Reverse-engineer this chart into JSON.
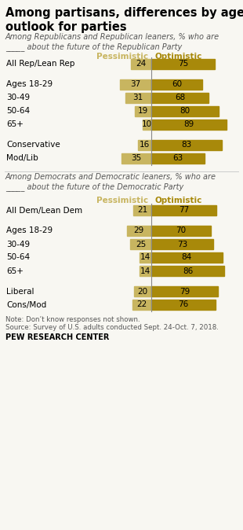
{
  "title": "Among partisans, differences by age in\noutlook for parties",
  "subtitle_rep": "Among Republicans and Republican leaners, % who are\n_____ about the future of the Republican Party",
  "subtitle_dem": "Among Democrats and Democratic leaners, % who are\n_____ about the future of the Democratic Party",
  "col_header_pessimistic": "Pessimistic",
  "col_header_optimistic": "Optimistic",
  "rep_labels": [
    "All Rep/Lean Rep",
    "Ages 18-29",
    "30-49",
    "50-64",
    "65+",
    "Conservative",
    "Mod/Lib"
  ],
  "rep_pessimistic": [
    24,
    37,
    31,
    19,
    10,
    16,
    35
  ],
  "rep_optimistic": [
    75,
    60,
    68,
    80,
    89,
    83,
    63
  ],
  "dem_labels": [
    "All Dem/Lean Dem",
    "Ages 18-29",
    "30-49",
    "50-64",
    "65+",
    "Liberal",
    "Cons/Mod"
  ],
  "dem_pessimistic": [
    21,
    29,
    25,
    14,
    14,
    20,
    22
  ],
  "dem_optimistic": [
    77,
    70,
    73,
    84,
    86,
    79,
    76
  ],
  "color_pessimistic": "#c8b560",
  "color_optimistic": "#a8890a",
  "note": "Note: Don’t know responses not shown.",
  "source": "Source: Survey of U.S. adults conducted Sept. 24-Oct. 7, 2018.",
  "footer": "PEW RESEARCH CENTER",
  "background_color": "#f8f7f2",
  "divider_color": "#888888",
  "title_color": "#000000"
}
